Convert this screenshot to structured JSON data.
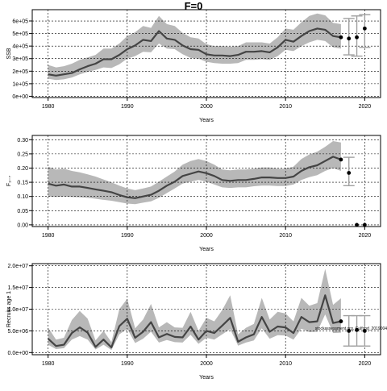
{
  "title": "F=0",
  "colors": {
    "band": "#b8b8b8",
    "line": "#444444",
    "projection": "#a0a0a0",
    "point": "#000000",
    "grid": "#000000"
  },
  "chart_data": [
    {
      "type": "line",
      "panel": "SSB",
      "ylabel": "SSB",
      "xlabel": "Years",
      "xlim": [
        1978,
        2022
      ],
      "ylim": [
        -10000,
        690000
      ],
      "xticks": [
        1980,
        1990,
        2000,
        2010,
        2020
      ],
      "xtick_labels": [
        "1980",
        "1990",
        "2000",
        "2010",
        "2020"
      ],
      "yticks": [
        0,
        100000,
        200000,
        300000,
        400000,
        500000,
        600000
      ],
      "ytick_labels": [
        "0e+00",
        "1e+05",
        "2e+05",
        "3e+05",
        "4e+05",
        "5e+05",
        "6e+05"
      ],
      "grid": true,
      "x": [
        1980,
        1981,
        1982,
        1983,
        1984,
        1985,
        1986,
        1987,
        1988,
        1989,
        1990,
        1991,
        1992,
        1993,
        1994,
        1995,
        1996,
        1997,
        1998,
        1999,
        2000,
        2001,
        2002,
        2003,
        2004,
        2005,
        2006,
        2007,
        2008,
        2009,
        2010,
        2011,
        2012,
        2013,
        2014,
        2015,
        2016,
        2017
      ],
      "median": [
        175000,
        165000,
        175000,
        185000,
        215000,
        240000,
        260000,
        295000,
        295000,
        330000,
        375000,
        405000,
        450000,
        440000,
        520000,
        460000,
        450000,
        405000,
        375000,
        370000,
        335000,
        325000,
        325000,
        320000,
        330000,
        355000,
        355000,
        360000,
        350000,
        390000,
        450000,
        435000,
        480000,
        520000,
        540000,
        530000,
        480000,
        470000
      ],
      "lower": [
        140000,
        130000,
        135000,
        150000,
        175000,
        195000,
        210000,
        230000,
        225000,
        255000,
        300000,
        320000,
        355000,
        350000,
        420000,
        380000,
        375000,
        335000,
        305000,
        300000,
        275000,
        265000,
        260000,
        260000,
        265000,
        290000,
        290000,
        295000,
        290000,
        320000,
        370000,
        360000,
        400000,
        430000,
        450000,
        440000,
        390000,
        380000
      ],
      "upper": [
        250000,
        230000,
        240000,
        260000,
        290000,
        310000,
        330000,
        380000,
        380000,
        420000,
        480000,
        510000,
        560000,
        545000,
        640000,
        575000,
        560000,
        505000,
        470000,
        460000,
        415000,
        400000,
        400000,
        395000,
        400000,
        430000,
        430000,
        430000,
        420000,
        470000,
        540000,
        530000,
        590000,
        640000,
        660000,
        645000,
        585000,
        575000
      ],
      "projection_x": [
        2018,
        2019,
        2020
      ],
      "projection_points": [
        460000,
        470000,
        540000
      ],
      "projection_lower": [
        330000,
        320000,
        390000
      ],
      "projection_upper": [
        620000,
        640000,
        650000
      ]
    },
    {
      "type": "line",
      "panel": "F",
      "ylabel": "F₃₋₇",
      "xlabel": "Years",
      "xlim": [
        1978,
        2022
      ],
      "ylim": [
        -0.006,
        0.315
      ],
      "xticks": [
        1980,
        1990,
        2000,
        2010,
        2020
      ],
      "xtick_labels": [
        "1980",
        "1990",
        "2000",
        "2010",
        "2020"
      ],
      "yticks": [
        0,
        0.05,
        0.1,
        0.15,
        0.2,
        0.25,
        0.3
      ],
      "ytick_labels": [
        "0.00",
        "0.05",
        "0.10",
        "0.15",
        "0.20",
        "0.25",
        "0.30"
      ],
      "grid": true,
      "x": [
        1980,
        1981,
        1982,
        1983,
        1984,
        1985,
        1986,
        1987,
        1988,
        1989,
        1990,
        1991,
        1992,
        1993,
        1994,
        1995,
        1996,
        1997,
        1998,
        1999,
        2000,
        2001,
        2002,
        2003,
        2004,
        2005,
        2006,
        2007,
        2008,
        2009,
        2010,
        2011,
        2012,
        2013,
        2014,
        2015,
        2016,
        2017
      ],
      "median": [
        0.145,
        0.138,
        0.142,
        0.135,
        0.135,
        0.13,
        0.125,
        0.12,
        0.115,
        0.105,
        0.097,
        0.094,
        0.1,
        0.106,
        0.12,
        0.138,
        0.152,
        0.172,
        0.18,
        0.188,
        0.182,
        0.172,
        0.158,
        0.155,
        0.158,
        0.158,
        0.162,
        0.167,
        0.167,
        0.165,
        0.165,
        0.17,
        0.19,
        0.203,
        0.21,
        0.225,
        0.24,
        0.23
      ],
      "lower": [
        0.1,
        0.098,
        0.1,
        0.098,
        0.097,
        0.095,
        0.092,
        0.088,
        0.085,
        0.08,
        0.075,
        0.073,
        0.078,
        0.083,
        0.095,
        0.112,
        0.128,
        0.145,
        0.152,
        0.158,
        0.152,
        0.142,
        0.132,
        0.13,
        0.132,
        0.132,
        0.136,
        0.138,
        0.138,
        0.137,
        0.137,
        0.142,
        0.158,
        0.168,
        0.175,
        0.19,
        0.2,
        0.19
      ],
      "upper": [
        0.205,
        0.195,
        0.198,
        0.19,
        0.185,
        0.178,
        0.17,
        0.16,
        0.15,
        0.138,
        0.128,
        0.122,
        0.128,
        0.135,
        0.152,
        0.17,
        0.188,
        0.212,
        0.225,
        0.232,
        0.225,
        0.212,
        0.195,
        0.192,
        0.195,
        0.195,
        0.198,
        0.202,
        0.202,
        0.198,
        0.198,
        0.205,
        0.232,
        0.248,
        0.258,
        0.275,
        0.295,
        0.29
      ],
      "projection_x": [
        2018,
        2019,
        2020
      ],
      "projection_points": [
        0.183,
        0.0,
        0.0
      ],
      "projection_lower": [
        0.138,
        0.0,
        0.0
      ],
      "projection_upper": [
        0.238,
        0.0,
        0.0
      ]
    },
    {
      "type": "line",
      "panel": "Recruitment",
      "ylabel": "Recruits age 1",
      "xlabel": "Years",
      "xlim": [
        1978,
        2022
      ],
      "ylim": [
        -500000,
        20500000
      ],
      "xticks": [
        1980,
        1990,
        2000,
        2010,
        2020
      ],
      "xtick_labels": [
        "1980",
        "1990",
        "2000",
        "2010",
        "2020"
      ],
      "yticks": [
        0,
        5000000,
        10000000,
        15000000,
        20000000
      ],
      "ytick_labels": [
        "0.0e+00",
        "5.0e+06",
        "1.0e+07",
        "1.5e+07",
        "2.0e+07"
      ],
      "grid": true,
      "annotation": "stockassessment.org, Gulfcod_2019004",
      "x": [
        1980,
        1981,
        1982,
        1983,
        1984,
        1985,
        1986,
        1987,
        1988,
        1989,
        1990,
        1991,
        1992,
        1993,
        1994,
        1995,
        1996,
        1997,
        1998,
        1999,
        2000,
        2001,
        2002,
        2003,
        2004,
        2005,
        2006,
        2007,
        2008,
        2009,
        2010,
        2011,
        2012,
        2013,
        2014,
        2015,
        2016,
        2017
      ],
      "median": [
        3200000,
        1500000,
        1800000,
        4500000,
        5800000,
        4600000,
        1300000,
        3000000,
        1200000,
        6100000,
        7800000,
        3400000,
        4800000,
        7000000,
        3500000,
        4300000,
        3600000,
        3500000,
        6000000,
        3000000,
        5000000,
        4500000,
        6200000,
        8000000,
        2500000,
        3500000,
        4200000,
        8200000,
        4800000,
        6000000,
        5800000,
        4500000,
        8200000,
        7000000,
        7200000,
        13200000,
        6800000,
        7200000
      ],
      "lower": [
        1800000,
        800000,
        1000000,
        3000000,
        3800000,
        3000000,
        700000,
        1800000,
        600000,
        4200000,
        5500000,
        2200000,
        3200000,
        4800000,
        2300000,
        2900000,
        2400000,
        2300000,
        4100000,
        2000000,
        3400000,
        3000000,
        4200000,
        5400000,
        1600000,
        2300000,
        2800000,
        5600000,
        3200000,
        4000000,
        3900000,
        3000000,
        5500000,
        4700000,
        4800000,
        8800000,
        4500000,
        4600000
      ],
      "upper": [
        5800000,
        3000000,
        3400000,
        7500000,
        9600000,
        7800000,
        2800000,
        5000000,
        2400000,
        10000000,
        12400000,
        5600000,
        7600000,
        11200000,
        5800000,
        7000000,
        5800000,
        5700000,
        9400000,
        5000000,
        8000000,
        7200000,
        9800000,
        13200000,
        4200000,
        5700000,
        6600000,
        12600000,
        7600000,
        9400000,
        9000000,
        7200000,
        12600000,
        10800000,
        11400000,
        19300000,
        11000000,
        12500000
      ],
      "projection_x": [
        2018,
        2019,
        2020
      ],
      "projection_points": [
        5000000,
        5200000,
        5000000
      ],
      "projection_lower": [
        1500000,
        1500000,
        1500000
      ],
      "projection_upper": [
        8500000,
        8500000,
        8500000
      ]
    }
  ]
}
